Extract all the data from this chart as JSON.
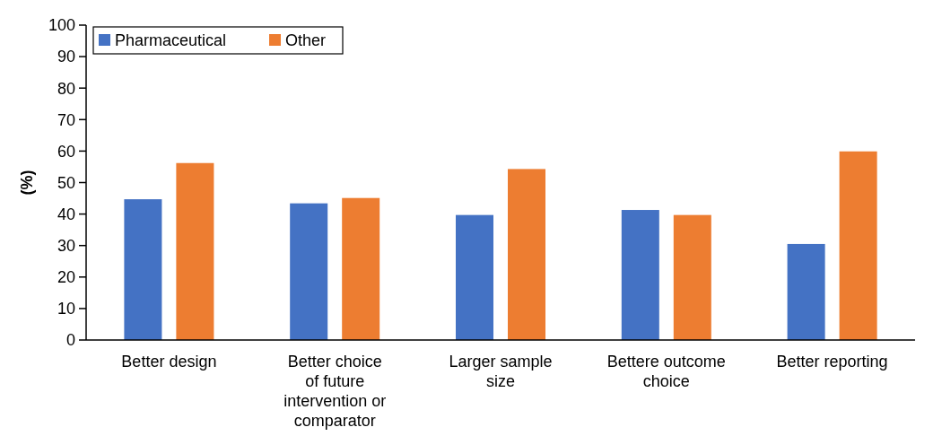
{
  "chart_data": {
    "type": "bar",
    "ylabel": "(%)",
    "categories": [
      "Better design",
      "Better choice\nof future\nintervention or\ncomparator",
      "Larger sample\nsize",
      "Bettere outcome\nchoice",
      "Better reporting"
    ],
    "series": [
      {
        "name": "Pharmaceutical",
        "color": "#4472c4",
        "values": [
          44.7,
          43.4,
          39.7,
          41.3,
          30.5
        ]
      },
      {
        "name": "Other",
        "color": "#ed7d31",
        "values": [
          56.2,
          45.1,
          54.3,
          39.7,
          59.9
        ]
      }
    ],
    "ylim": [
      0,
      100
    ],
    "yticks": [
      0,
      10,
      20,
      30,
      40,
      50,
      60,
      70,
      80,
      90,
      100
    ],
    "grid": false,
    "legend": "top left"
  }
}
